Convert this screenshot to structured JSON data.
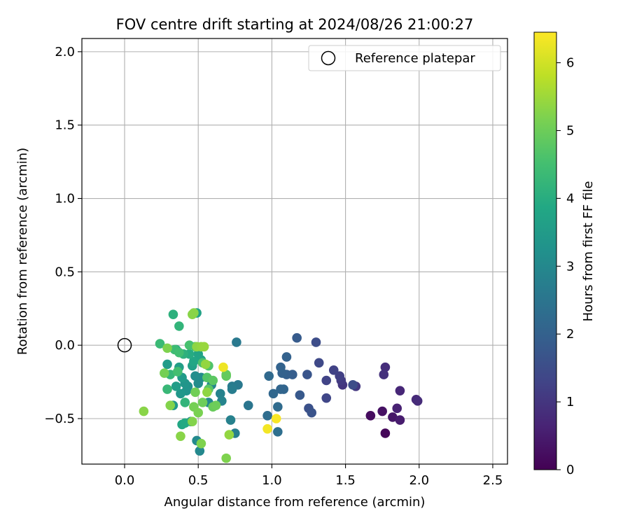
{
  "chart_data": {
    "type": "scatter",
    "title": "FOV centre drift starting at 2024/08/26 21:00:27",
    "xlabel": "Angular distance from reference (arcmin)",
    "ylabel": "Rotation from reference (arcmin)",
    "xlim": [
      -0.29,
      2.6
    ],
    "ylim": [
      -0.81,
      2.09
    ],
    "xticks": [
      0.0,
      0.5,
      1.0,
      1.5,
      2.0,
      2.5
    ],
    "xtick_labels": [
      "0.0",
      "0.5",
      "1.0",
      "1.5",
      "2.0",
      "2.5"
    ],
    "yticks": [
      -0.5,
      0.0,
      0.5,
      1.0,
      1.5,
      2.0
    ],
    "ytick_labels": [
      "−0.5",
      "0.0",
      "0.5",
      "1.0",
      "1.5",
      "2.0"
    ],
    "grid": true,
    "legend": {
      "placement": "top-right",
      "entries": [
        "Reference platepar"
      ]
    },
    "reference_point": {
      "x": 0.0,
      "y": 0.0,
      "label": "Reference platepar"
    },
    "colorbar": {
      "label": "Hours from first FF file",
      "colormap": "viridis",
      "range": [
        0,
        6.45
      ],
      "ticks": [
        0,
        1,
        2,
        3,
        4,
        5,
        6
      ],
      "tick_labels": [
        "0",
        "1",
        "2",
        "3",
        "4",
        "5",
        "6"
      ]
    },
    "points": [
      {
        "x": 1.77,
        "y": -0.6,
        "c": 0.1
      },
      {
        "x": 1.67,
        "y": -0.48,
        "c": 0.2
      },
      {
        "x": 1.75,
        "y": -0.45,
        "c": 0.3
      },
      {
        "x": 1.82,
        "y": -0.49,
        "c": 0.4
      },
      {
        "x": 1.87,
        "y": -0.51,
        "c": 0.5
      },
      {
        "x": 1.85,
        "y": -0.43,
        "c": 0.6
      },
      {
        "x": 1.87,
        "y": -0.31,
        "c": 0.7
      },
      {
        "x": 1.98,
        "y": -0.37,
        "c": 0.75
      },
      {
        "x": 1.99,
        "y": -0.38,
        "c": 0.8
      },
      {
        "x": 1.77,
        "y": -0.15,
        "c": 0.85
      },
      {
        "x": 1.76,
        "y": -0.2,
        "c": 0.9
      },
      {
        "x": 1.48,
        "y": -0.27,
        "c": 1.0
      },
      {
        "x": 1.57,
        "y": -0.28,
        "c": 1.05
      },
      {
        "x": 1.47,
        "y": -0.24,
        "c": 1.1
      },
      {
        "x": 1.46,
        "y": -0.21,
        "c": 1.2
      },
      {
        "x": 1.42,
        "y": -0.17,
        "c": 1.25
      },
      {
        "x": 1.37,
        "y": -0.24,
        "c": 1.3
      },
      {
        "x": 1.37,
        "y": -0.36,
        "c": 1.35
      },
      {
        "x": 1.32,
        "y": -0.12,
        "c": 1.4
      },
      {
        "x": 1.3,
        "y": 0.02,
        "c": 1.5
      },
      {
        "x": 1.55,
        "y": -0.27,
        "c": 1.5
      },
      {
        "x": 1.25,
        "y": -0.43,
        "c": 1.6
      },
      {
        "x": 1.27,
        "y": -0.46,
        "c": 1.65
      },
      {
        "x": 1.24,
        "y": -0.2,
        "c": 1.7
      },
      {
        "x": 1.19,
        "y": -0.34,
        "c": 1.8
      },
      {
        "x": 1.17,
        "y": 0.05,
        "c": 1.85
      },
      {
        "x": 1.14,
        "y": -0.2,
        "c": 1.9
      },
      {
        "x": 1.1,
        "y": -0.2,
        "c": 1.95
      },
      {
        "x": 1.1,
        "y": -0.08,
        "c": 2.0
      },
      {
        "x": 1.07,
        "y": -0.19,
        "c": 2.0
      },
      {
        "x": 1.06,
        "y": -0.15,
        "c": 2.05
      },
      {
        "x": 1.08,
        "y": -0.3,
        "c": 2.1
      },
      {
        "x": 1.06,
        "y": -0.3,
        "c": 2.1
      },
      {
        "x": 1.01,
        "y": -0.33,
        "c": 2.15
      },
      {
        "x": 0.98,
        "y": -0.21,
        "c": 2.2
      },
      {
        "x": 1.04,
        "y": -0.42,
        "c": 2.25
      },
      {
        "x": 0.97,
        "y": -0.48,
        "c": 2.3
      },
      {
        "x": 1.04,
        "y": -0.59,
        "c": 2.35
      },
      {
        "x": 0.84,
        "y": -0.41,
        "c": 2.5
      },
      {
        "x": 0.76,
        "y": 0.02,
        "c": 2.6
      },
      {
        "x": 0.77,
        "y": -0.27,
        "c": 2.6
      },
      {
        "x": 0.73,
        "y": -0.28,
        "c": 2.65
      },
      {
        "x": 0.73,
        "y": -0.3,
        "c": 2.7
      },
      {
        "x": 0.75,
        "y": -0.6,
        "c": 2.75
      },
      {
        "x": 0.72,
        "y": -0.51,
        "c": 2.8
      },
      {
        "x": 0.65,
        "y": -0.33,
        "c": 2.85
      },
      {
        "x": 0.66,
        "y": -0.38,
        "c": 2.9
      },
      {
        "x": 0.59,
        "y": -0.27,
        "c": 2.95
      },
      {
        "x": 0.57,
        "y": -0.39,
        "c": 3.0
      },
      {
        "x": 0.51,
        "y": -0.72,
        "c": 3.0
      },
      {
        "x": 0.49,
        "y": -0.65,
        "c": 3.05
      },
      {
        "x": 0.5,
        "y": -0.26,
        "c": 3.1
      },
      {
        "x": 0.52,
        "y": -0.22,
        "c": 3.1
      },
      {
        "x": 0.48,
        "y": -0.21,
        "c": 3.15
      },
      {
        "x": 0.45,
        "y": -0.52,
        "c": 3.2
      },
      {
        "x": 0.43,
        "y": -0.28,
        "c": 3.25
      },
      {
        "x": 0.42,
        "y": -0.31,
        "c": 3.3
      },
      {
        "x": 0.41,
        "y": -0.26,
        "c": 3.35
      },
      {
        "x": 0.38,
        "y": -0.33,
        "c": 3.4
      },
      {
        "x": 0.33,
        "y": -0.41,
        "c": 3.45
      },
      {
        "x": 0.29,
        "y": -0.13,
        "c": 3.5
      },
      {
        "x": 0.39,
        "y": -0.22,
        "c": 3.5
      },
      {
        "x": 0.35,
        "y": -0.28,
        "c": 3.55
      },
      {
        "x": 0.37,
        "y": -0.15,
        "c": 3.6
      },
      {
        "x": 0.46,
        "y": -0.14,
        "c": 3.65
      },
      {
        "x": 0.49,
        "y": 0.22,
        "c": 3.7
      },
      {
        "x": 0.52,
        "y": -0.1,
        "c": 3.7
      },
      {
        "x": 0.5,
        "y": -0.06,
        "c": 3.75
      },
      {
        "x": 0.47,
        "y": -0.11,
        "c": 3.8
      },
      {
        "x": 0.39,
        "y": -0.54,
        "c": 3.85
      },
      {
        "x": 0.41,
        "y": -0.53,
        "c": 3.9
      },
      {
        "x": 0.44,
        "y": -0.06,
        "c": 3.95
      },
      {
        "x": 0.35,
        "y": -0.03,
        "c": 4.0
      },
      {
        "x": 0.33,
        "y": 0.21,
        "c": 4.1
      },
      {
        "x": 0.4,
        "y": -0.06,
        "c": 4.1
      },
      {
        "x": 0.37,
        "y": 0.13,
        "c": 4.2
      },
      {
        "x": 0.41,
        "y": -0.39,
        "c": 4.2
      },
      {
        "x": 0.31,
        "y": -0.2,
        "c": 4.25
      },
      {
        "x": 0.29,
        "y": -0.3,
        "c": 4.3
      },
      {
        "x": 0.24,
        "y": 0.01,
        "c": 4.35
      },
      {
        "x": 0.34,
        "y": -0.03,
        "c": 4.4
      },
      {
        "x": 0.37,
        "y": -0.05,
        "c": 4.45
      },
      {
        "x": 0.48,
        "y": -0.01,
        "c": 4.5
      },
      {
        "x": 0.36,
        "y": -0.18,
        "c": 4.5
      },
      {
        "x": 0.44,
        "y": 0.0,
        "c": 4.55
      },
      {
        "x": 0.53,
        "y": -0.12,
        "c": 4.6
      },
      {
        "x": 0.57,
        "y": -0.14,
        "c": 4.65
      },
      {
        "x": 0.56,
        "y": -0.22,
        "c": 4.7
      },
      {
        "x": 0.57,
        "y": -0.3,
        "c": 4.75
      },
      {
        "x": 0.6,
        "y": -0.24,
        "c": 4.8
      },
      {
        "x": 0.69,
        "y": -0.21,
        "c": 4.85
      },
      {
        "x": 0.69,
        "y": -0.2,
        "c": 4.9
      },
      {
        "x": 0.6,
        "y": -0.42,
        "c": 4.95
      },
      {
        "x": 0.62,
        "y": -0.41,
        "c": 5.0
      },
      {
        "x": 0.53,
        "y": -0.39,
        "c": 5.0
      },
      {
        "x": 0.48,
        "y": -0.32,
        "c": 5.05
      },
      {
        "x": 0.47,
        "y": -0.42,
        "c": 5.1
      },
      {
        "x": 0.5,
        "y": -0.46,
        "c": 5.15
      },
      {
        "x": 0.52,
        "y": -0.67,
        "c": 5.2
      },
      {
        "x": 0.46,
        "y": -0.52,
        "c": 5.25
      },
      {
        "x": 0.46,
        "y": 0.21,
        "c": 5.3
      },
      {
        "x": 0.47,
        "y": 0.22,
        "c": 5.3
      },
      {
        "x": 0.49,
        "y": -0.01,
        "c": 5.35
      },
      {
        "x": 0.52,
        "y": -0.01,
        "c": 5.4
      },
      {
        "x": 0.54,
        "y": -0.01,
        "c": 5.45
      },
      {
        "x": 0.55,
        "y": -0.13,
        "c": 5.4
      },
      {
        "x": 0.56,
        "y": -0.32,
        "c": 5.35
      },
      {
        "x": 0.38,
        "y": -0.62,
        "c": 5.3
      },
      {
        "x": 0.29,
        "y": -0.02,
        "c": 5.2
      },
      {
        "x": 0.27,
        "y": -0.19,
        "c": 5.1
      },
      {
        "x": 0.31,
        "y": -0.41,
        "c": 5.25
      },
      {
        "x": 0.13,
        "y": -0.45,
        "c": 5.3
      },
      {
        "x": 0.69,
        "y": -0.77,
        "c": 5.2
      },
      {
        "x": 0.71,
        "y": -0.61,
        "c": 5.4
      },
      {
        "x": 0.67,
        "y": -0.15,
        "c": 6.3
      },
      {
        "x": 0.97,
        "y": -0.57,
        "c": 6.35
      },
      {
        "x": 1.03,
        "y": -0.5,
        "c": 6.4
      }
    ]
  }
}
